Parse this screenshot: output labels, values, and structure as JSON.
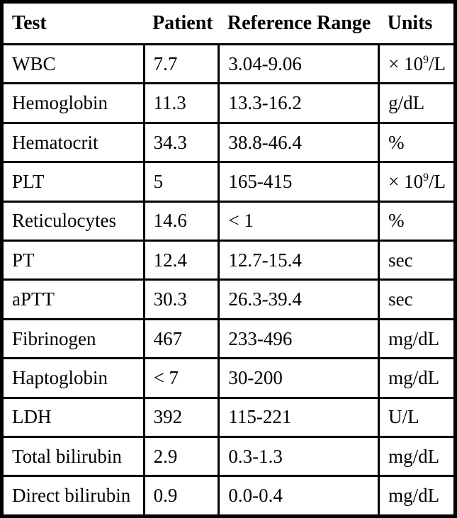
{
  "page": {
    "background": "#ffffff"
  },
  "colors": {
    "border": "#000000",
    "text": "#000000",
    "background": "#ffffff"
  },
  "table": {
    "name": "laboratory-results",
    "columns": [
      {
        "key": "test",
        "label": "Test"
      },
      {
        "key": "patient",
        "label": "Patient"
      },
      {
        "key": "reference_range",
        "label": "Reference Range"
      },
      {
        "key": "units",
        "label": "Units"
      }
    ],
    "rows": [
      {
        "test": "WBC",
        "patient": "7.7",
        "reference_range": "3.04-9.06",
        "units": "× 10⁹/L"
      },
      {
        "test": "Hemoglobin",
        "patient": "11.3",
        "reference_range": "13.3-16.2",
        "units": "g/dL"
      },
      {
        "test": "Hematocrit",
        "patient": "34.3",
        "reference_range": "38.8-46.4",
        "units": "%"
      },
      {
        "test": "PLT",
        "patient": "5",
        "reference_range": "165-415",
        "units": "× 10⁹/L"
      },
      {
        "test": "Reticulocytes",
        "patient": "14.6",
        "reference_range": "< 1",
        "units": "%"
      },
      {
        "test": "PT",
        "patient": "12.4",
        "reference_range": "12.7-15.4",
        "units": "sec"
      },
      {
        "test": "aPTT",
        "patient": "30.3",
        "reference_range": "26.3-39.4",
        "units": "sec"
      },
      {
        "test": "Fibrinogen",
        "patient": "467",
        "reference_range": "233-496",
        "units": "mg/dL"
      },
      {
        "test": "Haptoglobin",
        "patient": "< 7",
        "reference_range": "30-200",
        "units": "mg/dL"
      },
      {
        "test": "LDH",
        "patient": "392",
        "reference_range": "115-221",
        "units": "U/L"
      },
      {
        "test": "Total bilirubin",
        "patient": "2.9",
        "reference_range": "0.3-1.3",
        "units": "mg/dL"
      },
      {
        "test": "Direct bilirubin",
        "patient": "0.9",
        "reference_range": "0.0-0.4",
        "units": "mg/dL"
      }
    ]
  }
}
